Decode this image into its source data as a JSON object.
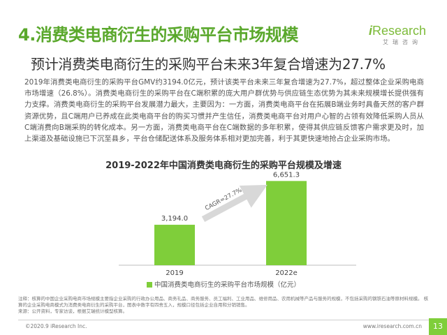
{
  "header": {
    "title": "4.消费类电商衍生的采购平台市场规模",
    "subtitle_prefix": "预计消费类电商衍生的采购平台未来3年复合增速为",
    "subtitle_value": "27.7%"
  },
  "logo": {
    "i": "i",
    "name": "Research",
    "sub": "艾瑞咨询"
  },
  "body": {
    "paragraph": "2019年消费类电商衍生的采购平台GMV约3194.0亿元，预计该类平台未来三年复合增速为27.7%，超过整体企业采购电商市场增速（26.8%）。消费类电商衍生的采购平台在C端积累的庞大用户群优势与供应链生态优势为其未来规模增长提供强有力支撑。消费类电商衍生的采购平台发展潜力最大，主要因为：一方面，消费类电商平台在拓展B端业务时具备天然的客户群资源优势，且C端用户已养成在此类电商平台的购买习惯并产生信任，消费类电商平台对用户心智的占领有效降低采购人员从C端消费向B端采购的转化成本。另一方面，消费类电商平台在C端数据的多年积累，使得其供应链反馈客户需求更及时，加上渠道及基础设施已下沉至县乡，平台仓储配送体系及服务体系相对更加完善，利于其更快速地抢占企业采购市场。"
  },
  "chart_data": {
    "type": "bar",
    "title": "2019-2022年中国消费类电商衍生的采购平台规模及增速",
    "categories": [
      "2019",
      "2022e"
    ],
    "values": [
      3194.0,
      6651.3
    ],
    "value_labels": [
      "3,194.0",
      "6,651.3"
    ],
    "series": [
      {
        "name": "中国消费类电商衍生的采购平台市场规模（亿元）",
        "values": [
          3194.0,
          6651.3
        ]
      }
    ],
    "annotations": [
      {
        "text": "CAGR=27.7%"
      }
    ],
    "ylim": [
      0,
      7000
    ],
    "grid": false,
    "legend": "bottom-center",
    "colors": {
      "bar": "#7fce3a",
      "arrow": "#d8d8d8"
    }
  },
  "footer": {
    "note": "注释：核算的中国企业采购电商市场规模主要指企业采购的行政办公用品、商务礼品、商务服务、员工福利、工业用品、维修用品、农用机械等产品与服务的规模，不包括采购的钢铁石油等原材料规模。 核算的企业采购电商模式为消费类电商衍生的采购平台，图表中数字有四舍五入，规模口径包括企业自用和分销销售。",
    "source": "来源：公开资料，专家访谈，根据艾瑞统计模型核算。",
    "copyright": "©2020.9 iResearch Inc.",
    "website": "www.iresearch.com.cn",
    "page": "13"
  },
  "colors": {
    "accent": "#5aa82c",
    "bar": "#7fce3a"
  }
}
